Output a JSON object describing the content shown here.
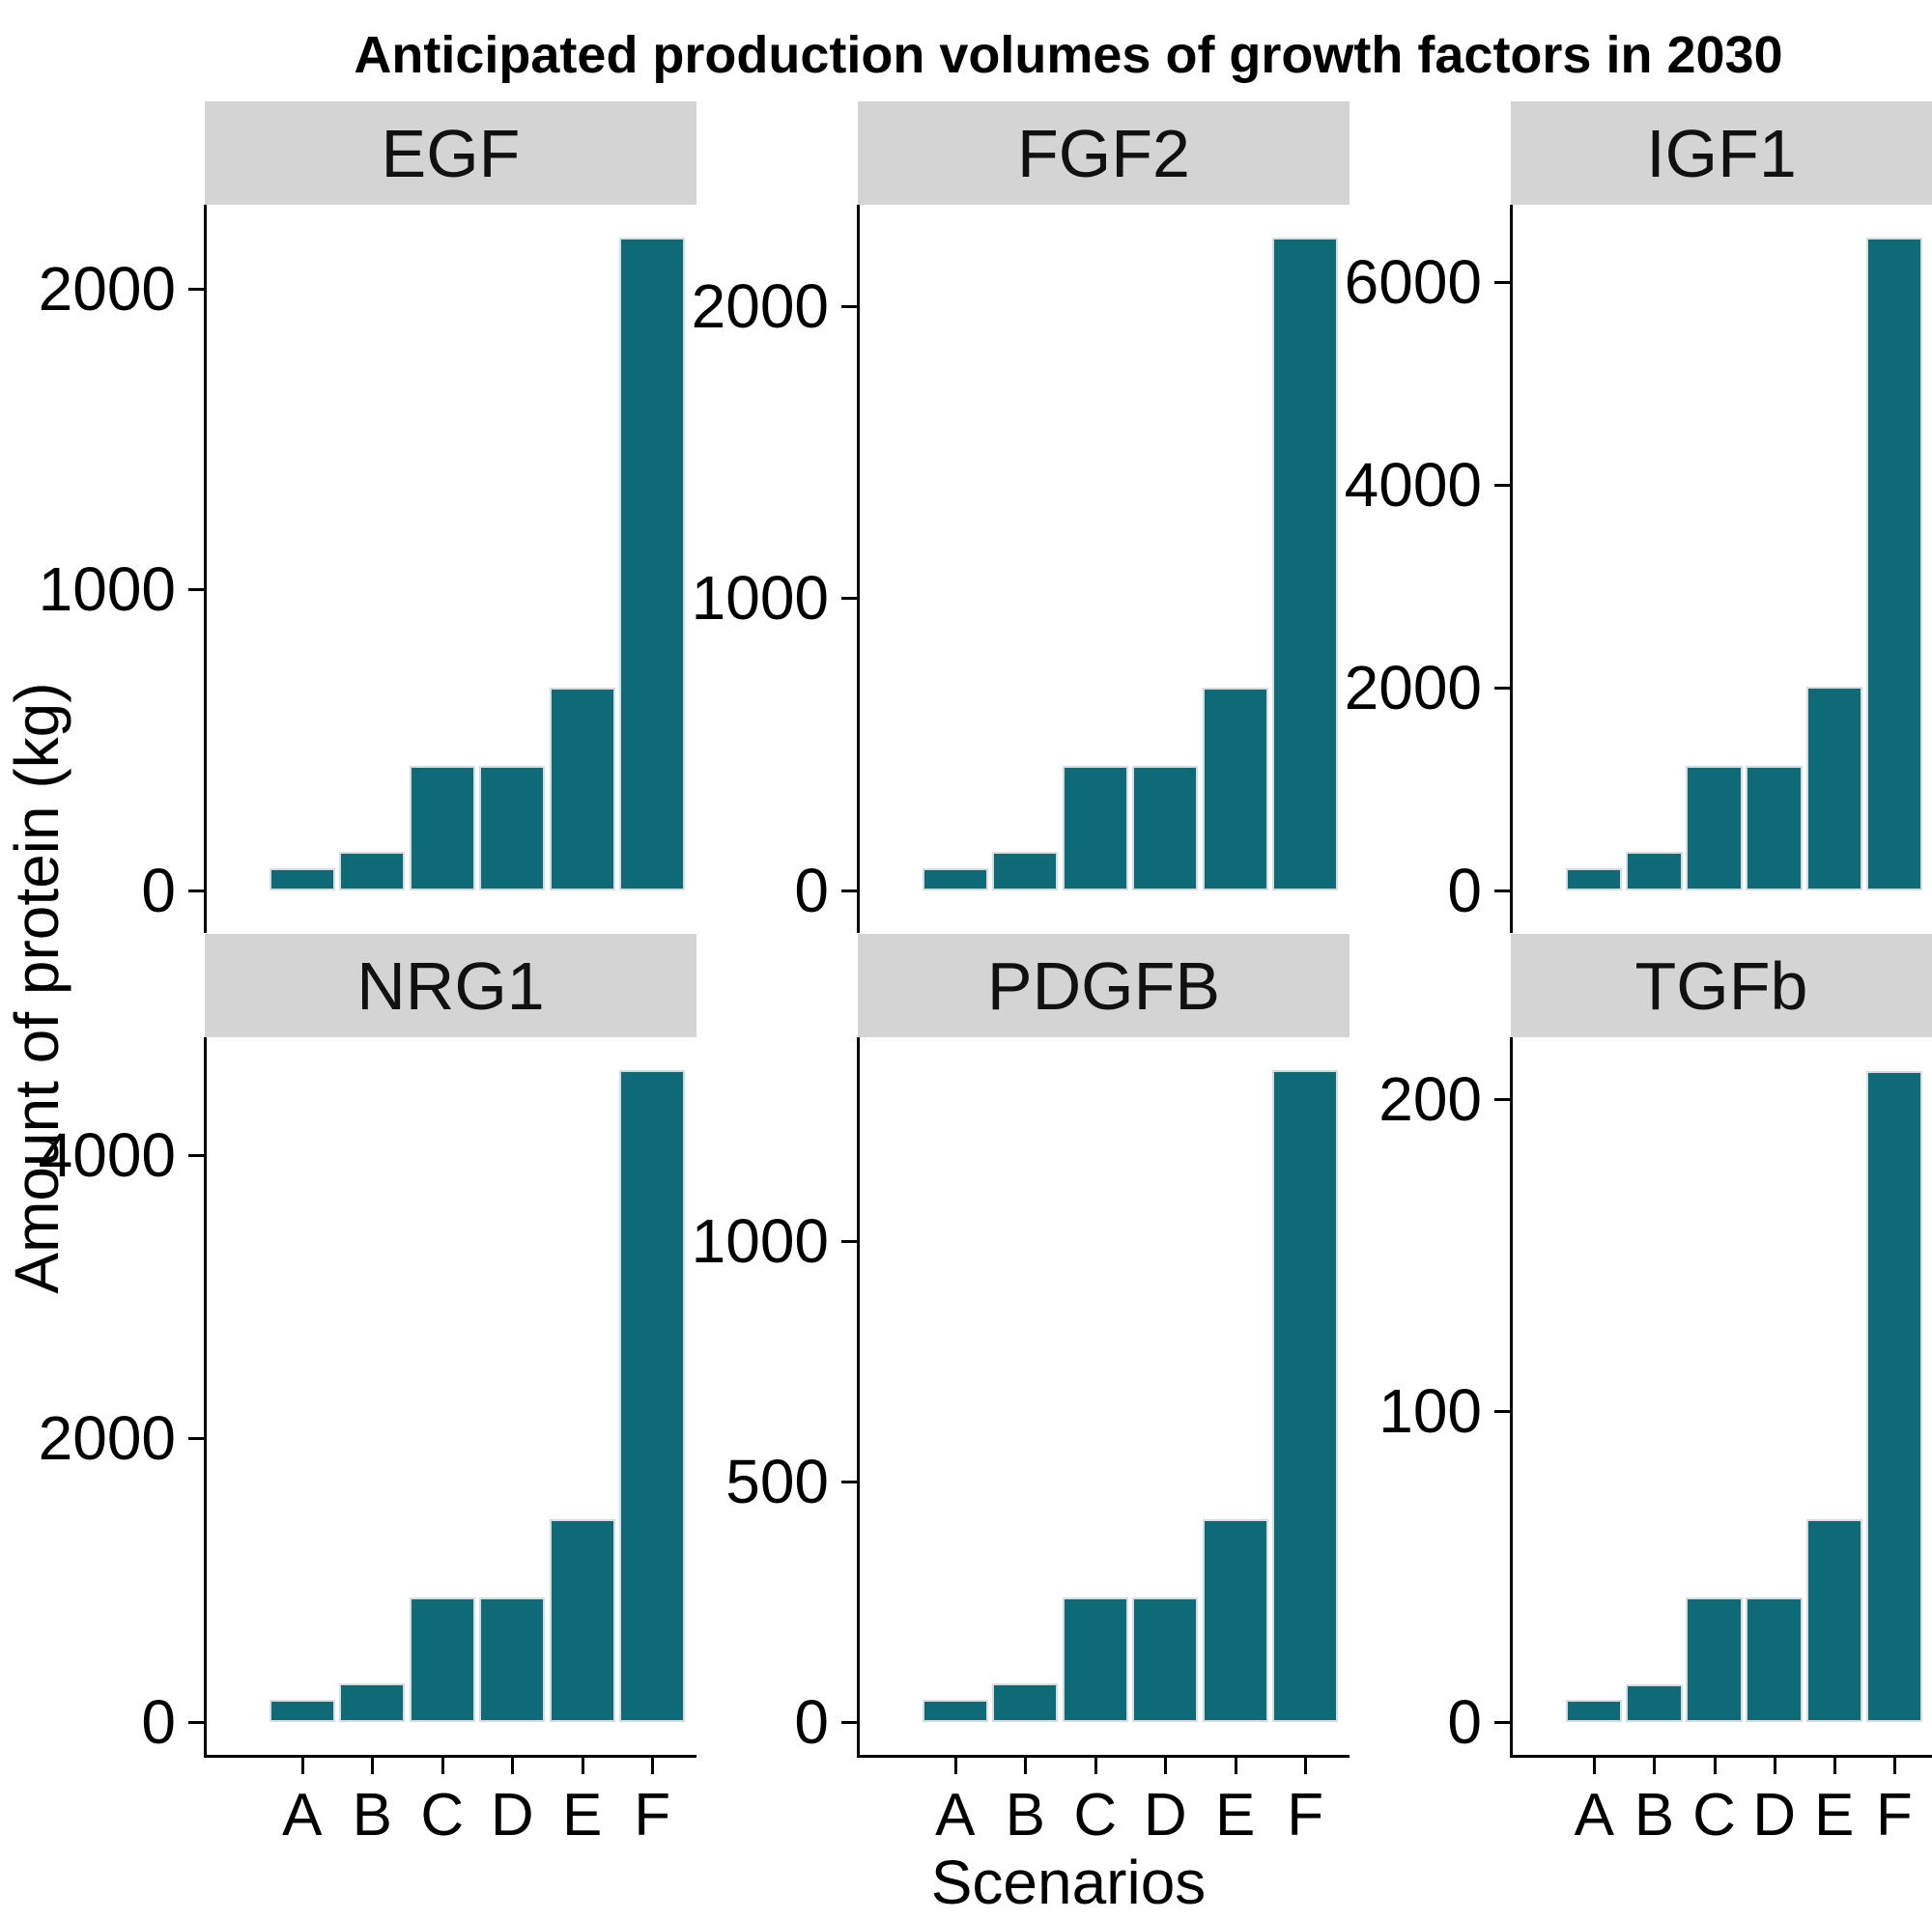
{
  "title": "Anticipated production volumes of growth factors in 2030",
  "y_axis_title": "Amount of protein (kg)",
  "x_axis_title": "Scenarios",
  "colors": {
    "bar_fill": "#0f6a78",
    "bar_outline": "#d7dddd",
    "strip_background": "#d4d4d4",
    "axis": "#000000"
  },
  "chart_data": {
    "type": "bar",
    "layout": "facet-grid 2 rows x 3 cols, free y scales, shared x",
    "grid": "off",
    "legend": "none",
    "title": "Anticipated production volumes of growth factors in 2030",
    "xlabel": "Scenarios",
    "ylabel": "Amount of protein (kg)",
    "categories": [
      "A",
      "B",
      "C",
      "D",
      "E",
      "F"
    ],
    "facets": [
      {
        "label": "EGF",
        "values": [
          74,
          129,
          415,
          415,
          675,
          2170
        ],
        "yticks": [
          0,
          1000,
          2000
        ],
        "ylim": [
          0,
          2280
        ]
      },
      {
        "label": "FGF2",
        "values": [
          76,
          132,
          427,
          427,
          695,
          2235
        ],
        "yticks": [
          0,
          1000,
          2000
        ],
        "ylim": [
          0,
          2348
        ]
      },
      {
        "label": "IGF1",
        "values": [
          220,
          380,
          1230,
          1230,
          2005,
          6440
        ],
        "yticks": [
          0,
          2000,
          4000,
          6000
        ],
        "ylim": [
          0,
          6765
        ]
      },
      {
        "label": "NRG1",
        "values": [
          157,
          273,
          880,
          880,
          1430,
          4600
        ],
        "yticks": [
          0,
          2000,
          4000
        ],
        "ylim": [
          0,
          4832
        ]
      },
      {
        "label": "PDGFB",
        "values": [
          46,
          80,
          259,
          259,
          422,
          1355
        ],
        "yticks": [
          0,
          500,
          1000
        ],
        "ylim": [
          0,
          1423
        ]
      },
      {
        "label": "TGFb",
        "values": [
          7,
          12,
          40,
          40,
          65,
          209
        ],
        "yticks": [
          0,
          100,
          200
        ],
        "ylim": [
          0,
          220
        ]
      }
    ]
  }
}
